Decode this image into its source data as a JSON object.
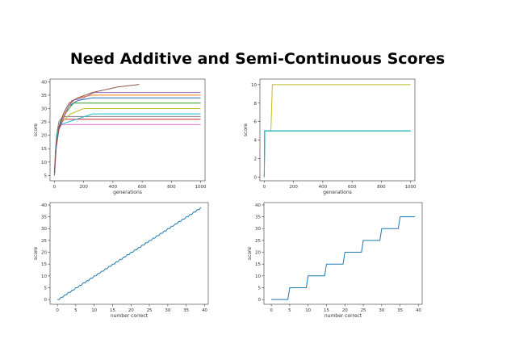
{
  "page": {
    "title": "Need Additive and Semi-Continuous Scores"
  },
  "chart_data": [
    {
      "type": "line",
      "title": "",
      "xlabel": "generations",
      "ylabel": "score",
      "xlim": [
        -30,
        1030
      ],
      "ylim": [
        3,
        41
      ],
      "xticks": [
        0,
        200,
        400,
        600,
        800,
        1000
      ],
      "yticks": [
        5,
        10,
        15,
        20,
        25,
        30,
        35,
        40
      ],
      "grid": false,
      "series": [
        {
          "color": "#e377c2",
          "points": [
            [
              0,
              5
            ],
            [
              6,
              13
            ],
            [
              14,
              20
            ],
            [
              24,
              22
            ],
            [
              50,
              24
            ],
            [
              1000,
              24
            ]
          ]
        },
        {
          "color": "#d62728",
          "points": [
            [
              0,
              6
            ],
            [
              8,
              14
            ],
            [
              15,
              19
            ],
            [
              22,
              22
            ],
            [
              35,
              24
            ],
            [
              70,
              26
            ],
            [
              1000,
              26
            ]
          ]
        },
        {
          "color": "#7f7f7f",
          "points": [
            [
              0,
              5
            ],
            [
              7,
              12
            ],
            [
              12,
              18
            ],
            [
              20,
              22
            ],
            [
              30,
              25
            ],
            [
              55,
              27
            ],
            [
              1000,
              27
            ]
          ]
        },
        {
          "color": "#17becf",
          "points": [
            [
              0,
              6
            ],
            [
              8,
              15
            ],
            [
              16,
              20
            ],
            [
              25,
              22
            ],
            [
              40,
              24
            ],
            [
              260,
              28
            ],
            [
              1000,
              28
            ]
          ]
        },
        {
          "color": "#bcbd22",
          "points": [
            [
              0,
              5
            ],
            [
              10,
              14
            ],
            [
              20,
              20
            ],
            [
              40,
              24
            ],
            [
              70,
              26
            ],
            [
              110,
              28
            ],
            [
              200,
              30
            ],
            [
              1000,
              30
            ]
          ]
        },
        {
          "color": "#2ca02c",
          "points": [
            [
              0,
              6
            ],
            [
              10,
              15
            ],
            [
              22,
              20
            ],
            [
              35,
              24
            ],
            [
              60,
              27
            ],
            [
              100,
              30
            ],
            [
              130,
              32
            ],
            [
              1000,
              32
            ]
          ]
        },
        {
          "color": "#1f77b4",
          "points": [
            [
              0,
              5
            ],
            [
              10,
              14
            ],
            [
              20,
              20
            ],
            [
              40,
              25
            ],
            [
              70,
              28
            ],
            [
              100,
              31
            ],
            [
              160,
              33
            ],
            [
              260,
              34
            ],
            [
              1000,
              34
            ]
          ]
        },
        {
          "color": "#ff7f0e",
          "points": [
            [
              0,
              6
            ],
            [
              12,
              15
            ],
            [
              25,
              21
            ],
            [
              45,
              25
            ],
            [
              70,
              28
            ],
            [
              100,
              31
            ],
            [
              130,
              33
            ],
            [
              160,
              34
            ],
            [
              260,
              35
            ],
            [
              1000,
              35
            ]
          ]
        },
        {
          "color": "#9467bd",
          "points": [
            [
              0,
              5
            ],
            [
              12,
              15
            ],
            [
              30,
              22
            ],
            [
              60,
              26
            ],
            [
              90,
              30
            ],
            [
              120,
              33
            ],
            [
              200,
              34
            ],
            [
              270,
              36
            ],
            [
              1000,
              36
            ]
          ]
        },
        {
          "color": "#8c564b",
          "points": [
            [
              0,
              6
            ],
            [
              12,
              16
            ],
            [
              30,
              22
            ],
            [
              60,
              28
            ],
            [
              100,
              32
            ],
            [
              160,
              34
            ],
            [
              260,
              36
            ],
            [
              430,
              38
            ],
            [
              580,
              39
            ]
          ]
        }
      ]
    },
    {
      "type": "line",
      "title": "",
      "xlabel": "generations",
      "ylabel": "score",
      "xlim": [
        -30,
        1030
      ],
      "ylim": [
        -0.4,
        10.6
      ],
      "xticks": [
        0,
        200,
        400,
        600,
        800,
        1000
      ],
      "yticks": [
        0,
        2,
        4,
        6,
        8,
        10
      ],
      "grid": false,
      "series": [
        {
          "color": "#bcbd22",
          "points": [
            [
              0,
              0
            ],
            [
              2,
              5
            ],
            [
              45,
              5
            ],
            [
              55,
              10
            ],
            [
              1000,
              10
            ]
          ]
        },
        {
          "color": "#2ca02c",
          "points": [
            [
              0,
              0
            ],
            [
              2,
              5
            ],
            [
              1000,
              5
            ]
          ]
        },
        {
          "color": "#1f77b4",
          "points": [
            [
              0,
              0
            ],
            [
              3,
              5
            ],
            [
              1000,
              5
            ]
          ]
        },
        {
          "color": "#17becf",
          "points": [
            [
              0,
              0
            ],
            [
              3,
              5
            ],
            [
              1000,
              5
            ]
          ]
        }
      ]
    },
    {
      "type": "line",
      "title": "",
      "xlabel": "number correct",
      "ylabel": "score",
      "xlim": [
        -2,
        41
      ],
      "ylim": [
        -2,
        41
      ],
      "xticks": [
        0,
        5,
        10,
        15,
        20,
        25,
        30,
        35,
        40
      ],
      "yticks": [
        0,
        5,
        10,
        15,
        20,
        25,
        30,
        35,
        40
      ],
      "grid": false,
      "series": [
        {
          "color": "#1f77b4",
          "step_group": 1,
          "x_range": [
            0,
            39
          ]
        }
      ]
    },
    {
      "type": "line",
      "title": "",
      "xlabel": "number correct",
      "ylabel": "score",
      "xlim": [
        -2,
        41
      ],
      "ylim": [
        -2,
        41
      ],
      "xticks": [
        0,
        5,
        10,
        15,
        20,
        25,
        30,
        35,
        40
      ],
      "yticks": [
        0,
        5,
        10,
        15,
        20,
        25,
        30,
        35,
        40
      ],
      "grid": false,
      "series": [
        {
          "color": "#1f77b4",
          "step_group": 5,
          "x_range": [
            0,
            39
          ]
        }
      ]
    }
  ]
}
